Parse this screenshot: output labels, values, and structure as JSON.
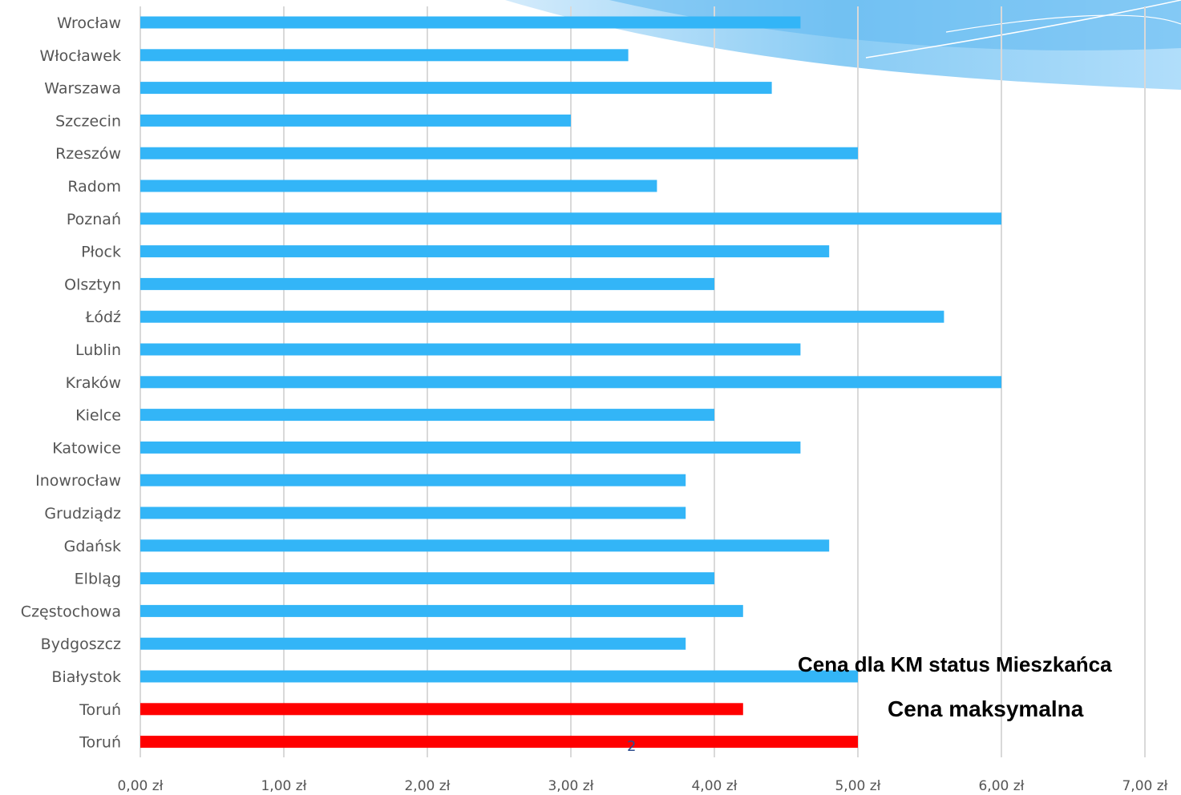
{
  "chart_data": {
    "type": "bar",
    "orientation": "horizontal",
    "categories": [
      "Wrocław",
      "Włocławek",
      "Warszawa",
      "Szczecin",
      "Rzeszów",
      "Radom",
      "Poznań",
      "Płock",
      "Olsztyn",
      "Łódź",
      "Lublin",
      "Kraków",
      "Kielce",
      "Katowice",
      "Inowrocław",
      "Grudziądz",
      "Gdańsk",
      "Elbląg",
      "Częstochowa",
      "Bydgoszcz",
      "Białystok",
      "Toruń",
      "Toruń"
    ],
    "values": [
      4.6,
      3.4,
      4.4,
      3.0,
      5.0,
      3.6,
      6.0,
      4.8,
      4.0,
      5.6,
      4.6,
      6.0,
      4.0,
      4.6,
      3.8,
      3.8,
      4.8,
      4.0,
      4.2,
      3.8,
      5.0,
      4.2,
      5.0
    ],
    "bar_colors": [
      "#33b5f7",
      "#33b5f7",
      "#33b5f7",
      "#33b5f7",
      "#33b5f7",
      "#33b5f7",
      "#33b5f7",
      "#33b5f7",
      "#33b5f7",
      "#33b5f7",
      "#33b5f7",
      "#33b5f7",
      "#33b5f7",
      "#33b5f7",
      "#33b5f7",
      "#33b5f7",
      "#33b5f7",
      "#33b5f7",
      "#33b5f7",
      "#33b5f7",
      "#33b5f7",
      "#ff0000",
      "#ff0000"
    ],
    "xlim": [
      0,
      7
    ],
    "xticks": [
      "0,00 zł",
      "1,00 zł",
      "2,00 zł",
      "3,00 zł",
      "4,00 zł",
      "5,00 zł",
      "6,00 zł",
      "7,00 zł"
    ],
    "grid": true,
    "annotations": [
      "Cena dla KM status Mieszkańca",
      "Cena maksymalna"
    ],
    "page_number": "2"
  }
}
